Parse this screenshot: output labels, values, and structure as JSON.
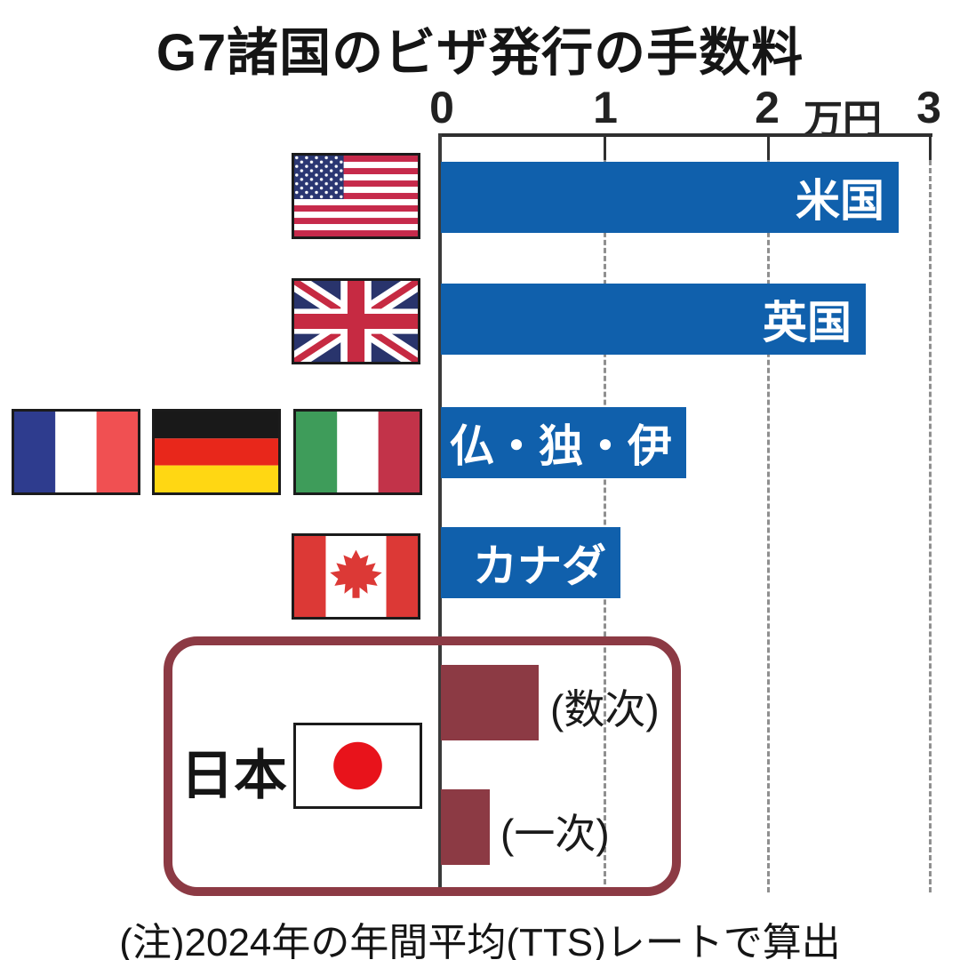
{
  "title": "G7諸国のビザ発行の手数料",
  "axis": {
    "ticks": [
      "0",
      "1",
      "2",
      "3"
    ],
    "unit": "万円"
  },
  "japan": {
    "label": "日本"
  },
  "note": "(注)2024年の年間平均(TTS)レートで算出",
  "colors": {
    "bar_blue": "#1060ac",
    "japan_maroon": "#8c3a44",
    "grid_gray": "#8f8f8f",
    "axis_dark": "#2f2f2f",
    "text_black": "#151515",
    "bar_label_white": "#ffffff",
    "japan_flag_red": "#e8131b"
  },
  "chart_data": {
    "type": "bar",
    "orientation": "horizontal",
    "title": "G7諸国のビザ発行の手数料",
    "unit": "万円",
    "xlim": [
      0,
      3
    ],
    "x_ticks": [
      0,
      1,
      2,
      3
    ],
    "grid": "vertical dashed lines at 1, 2 and 3",
    "bars": [
      {
        "label": "米国",
        "flag": "united-states",
        "value": 2.8
      },
      {
        "label": "英国",
        "flag": "united-kingdom",
        "value": 2.6
      },
      {
        "label": "仏・独・伊",
        "flag": "france-germany-italy",
        "value": 1.5
      },
      {
        "label": "カナダ",
        "flag": "canada",
        "value": 1.1
      },
      {
        "label": "(数次)",
        "group": "日本",
        "flag": "japan",
        "value": 0.6
      },
      {
        "label": "(一次)",
        "group": "日本",
        "flag": "japan",
        "value": 0.3
      }
    ],
    "note": "(注)2024年の年間平均(TTS)レートで算出"
  }
}
